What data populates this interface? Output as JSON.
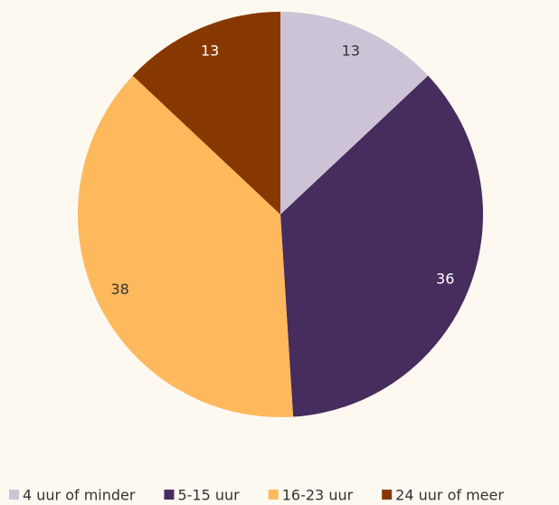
{
  "chart_data": {
    "type": "pie",
    "categories": [
      "4 uur of minder",
      "5-15 uur",
      "16-23 uur",
      "24 uur of meer"
    ],
    "values": [
      13,
      36,
      38,
      13
    ],
    "colors": [
      "#cdc3d6",
      "#472c5e",
      "#fdb95c",
      "#873800"
    ],
    "legend": "bottom"
  }
}
